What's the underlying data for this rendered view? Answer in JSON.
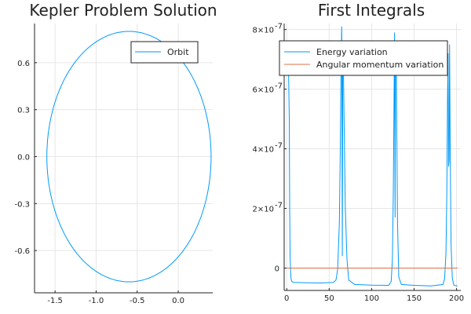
{
  "chart_data": [
    {
      "type": "line",
      "title": "Kepler Problem Solution",
      "xlabel": "",
      "ylabel": "",
      "xlim": [
        -1.75,
        0.42
      ],
      "ylim": [
        -0.87,
        0.85
      ],
      "xticks": [
        -1.5,
        -1.0,
        -0.5,
        0.0
      ],
      "xtick_labels": [
        "-1.5",
        "-1.0",
        "-0.5",
        "0.0"
      ],
      "yticks": [
        -0.6,
        -0.3,
        0.0,
        0.3,
        0.6
      ],
      "ytick_labels": [
        "-0.6",
        "-0.3",
        "0.0",
        "0.3",
        "0.6"
      ],
      "grid": true,
      "legend_position": "top-right",
      "series": [
        {
          "name": "Orbit",
          "color": "#009AFA",
          "shape": "ellipse",
          "center": [
            -0.6,
            0.0
          ],
          "semi_axes": [
            1.0,
            0.8
          ]
        }
      ]
    },
    {
      "type": "line",
      "title": "First Integrals",
      "xlabel": "",
      "ylabel": "",
      "xlim": [
        -3,
        205
      ],
      "ylim": [
        -7.5e-08,
        8.2e-07
      ],
      "xticks": [
        0,
        50,
        100,
        150,
        200
      ],
      "xtick_labels": [
        "0",
        "50",
        "100",
        "150",
        "200"
      ],
      "yticks": [
        0,
        2e-07,
        4e-07,
        6e-07,
        8e-07
      ],
      "ytick_labels": [
        "0",
        "2×10",
        "4×10",
        "6×10",
        "8×10"
      ],
      "ytick_exponent": "-7",
      "grid": true,
      "legend_position": "top-right",
      "series": [
        {
          "name": "Energy variation",
          "color": "#009AFA",
          "x": [
            0,
            1,
            2,
            3,
            3.5,
            4,
            5,
            6,
            8,
            20,
            40,
            55,
            58,
            60,
            62,
            63,
            64,
            64.8,
            65.5,
            66,
            66.5,
            67.5,
            69,
            71,
            73,
            80,
            100,
            120,
            123,
            124.5,
            125.5,
            126.3,
            127,
            127.6,
            128.2,
            129,
            129.7,
            130.5,
            132,
            135,
            150,
            170,
            184,
            186,
            187.5,
            188.5,
            189.3,
            190,
            190.6,
            191.2,
            191.8,
            192.5,
            193.5,
            195,
            197,
            201
          ],
          "y": [
            6.8e-07,
            7.2e-07,
            6.9e-07,
            5e-07,
            2e-07,
            3e-08,
            -3.5e-08,
            -4.5e-08,
            -4.8e-08,
            -4.9e-08,
            -5e-08,
            -4.8e-08,
            -4e-08,
            -5e-09,
            1.5e-07,
            3.8e-07,
            7e-07,
            8.1e-07,
            4e-08,
            7.6e-07,
            7.3e-07,
            5e-07,
            2e-07,
            3e-08,
            -4e-08,
            -5.5e-08,
            -5.7e-08,
            -5.8e-08,
            -4.5e-08,
            3e-08,
            2.5e-07,
            5.5e-07,
            7.9e-07,
            1.7e-07,
            7.6e-07,
            7.3e-07,
            4.5e-07,
            1.5e-07,
            -3e-08,
            -5.5e-08,
            -5.8e-08,
            -6e-08,
            -5.5e-08,
            -3.5e-08,
            5e-08,
            2.5e-07,
            5.5e-07,
            7.2e-07,
            3.4e-07,
            3.6e-07,
            7.5e-07,
            4e-07,
            8e-08,
            -3.5e-08,
            -5.8e-08,
            -6e-08
          ]
        },
        {
          "name": "Angular momentum variation",
          "color": "#E26F46",
          "x": [
            0,
            201
          ],
          "y": [
            0,
            0
          ]
        }
      ]
    }
  ]
}
